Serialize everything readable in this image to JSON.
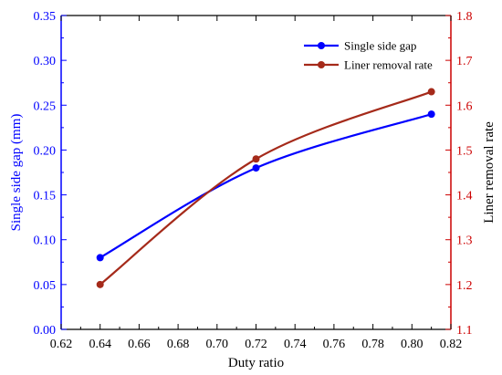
{
  "chart_data": {
    "type": "line",
    "xlabel": "Duty ratio",
    "ylabel_left": "Single side gap (mm)",
    "ylabel_right": "Liner removal rate",
    "xlim": [
      0.62,
      0.82
    ],
    "ylim_left": [
      0.0,
      0.35
    ],
    "ylim_right": [
      1.1,
      1.8
    ],
    "x_ticks": [
      "0.62",
      "0.64",
      "0.66",
      "0.68",
      "0.70",
      "0.72",
      "0.74",
      "0.76",
      "0.78",
      "0.80",
      "0.82"
    ],
    "y_left_ticks": [
      "0.00",
      "0.05",
      "0.10",
      "0.15",
      "0.20",
      "0.25",
      "0.30",
      "0.35"
    ],
    "y_right_ticks": [
      "1.1",
      "1.2",
      "1.3",
      "1.4",
      "1.5",
      "1.6",
      "1.7",
      "1.8"
    ],
    "grid": false,
    "legend_position": "top-right",
    "series": [
      {
        "name": "Single side gap",
        "axis": "left",
        "color": "#0000ff",
        "x": [
          0.64,
          0.72,
          0.81
        ],
        "y": [
          0.08,
          0.18,
          0.24
        ]
      },
      {
        "name": "Liner removal rate",
        "axis": "right",
        "color": "#a52a1a",
        "x": [
          0.64,
          0.72,
          0.81
        ],
        "y": [
          1.2,
          1.48,
          1.63
        ]
      }
    ],
    "colors": {
      "left_axis": "#0000ff",
      "right_axis": "#cc0000",
      "bottom_axis": "#000000"
    }
  }
}
